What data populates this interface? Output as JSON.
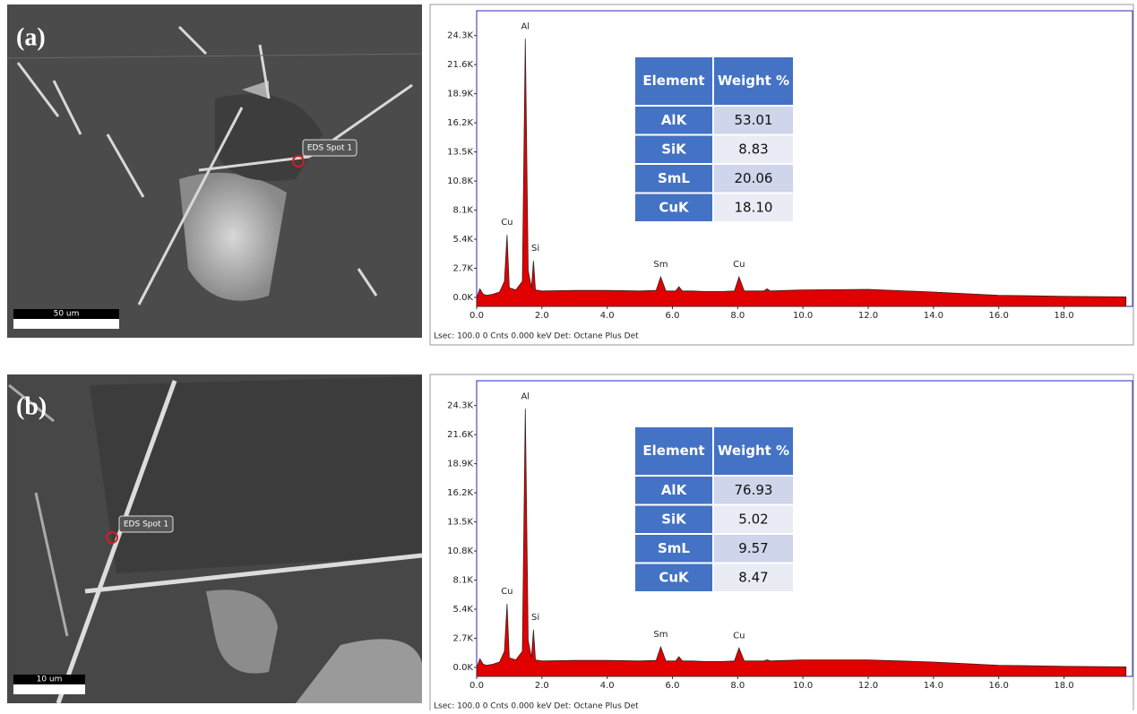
{
  "chart_data": [
    {
      "type": "area",
      "color": "#e00000",
      "outline": "#3a2020",
      "x": [
        0.0,
        0.1,
        0.2,
        0.3,
        0.5,
        0.7,
        0.85,
        0.93,
        1.0,
        1.2,
        1.4,
        1.49,
        1.58,
        1.68,
        1.74,
        1.8,
        2.0,
        3.0,
        4.0,
        5.0,
        5.5,
        5.64,
        5.8,
        6.1,
        6.2,
        6.3,
        6.6,
        7.0,
        7.5,
        7.9,
        8.04,
        8.2,
        8.8,
        8.9,
        9.0,
        10.0,
        12.0,
        14.0,
        16.0,
        18.0,
        19.9
      ],
      "values": [
        0,
        800,
        300,
        200,
        300,
        500,
        1500,
        5800,
        900,
        700,
        1500,
        24000,
        2500,
        900,
        3400,
        700,
        600,
        650,
        650,
        600,
        650,
        1900,
        600,
        600,
        1000,
        600,
        600,
        550,
        550,
        600,
        1900,
        600,
        600,
        800,
        600,
        700,
        750,
        500,
        200,
        100,
        50
      ],
      "xlim": [
        0,
        20.1
      ],
      "ylim": [
        0,
        26600
      ],
      "xticks": [
        {
          "value": 0,
          "label": "0.0"
        },
        {
          "value": 2,
          "label": "2.0"
        },
        {
          "value": 4,
          "label": "4.0"
        },
        {
          "value": 6,
          "label": "6.0"
        },
        {
          "value": 8,
          "label": "8.0"
        },
        {
          "value": 10,
          "label": "10.0"
        },
        {
          "value": 12,
          "label": "12.0"
        },
        {
          "value": 14,
          "label": "14.0"
        },
        {
          "value": 16,
          "label": "16.0"
        },
        {
          "value": 18,
          "label": "18.0"
        }
      ],
      "yticks": [
        {
          "value": 0,
          "label": "0.0K"
        },
        {
          "value": 2700,
          "label": "2.7K"
        },
        {
          "value": 5400,
          "label": "5.4K"
        },
        {
          "value": 8100,
          "label": "8.1K"
        },
        {
          "value": 10800,
          "label": "10.8K"
        },
        {
          "value": 13500,
          "label": "13.5K"
        },
        {
          "value": 16200,
          "label": "16.2K"
        },
        {
          "value": 18900,
          "label": "18.9K"
        },
        {
          "value": 21600,
          "label": "21.6K"
        },
        {
          "value": 24300,
          "label": "24.3K"
        }
      ],
      "annotations": [
        {
          "text": "Cu",
          "x": 0.93,
          "y": 5800
        },
        {
          "text": "Al",
          "x": 1.49,
          "y": 24000
        },
        {
          "text": "Si",
          "x": 1.8,
          "y": 3400
        },
        {
          "text": "Sm",
          "x": 5.64,
          "y": 1900
        },
        {
          "text": "Cu",
          "x": 8.04,
          "y": 1900
        }
      ],
      "footer": "Lsec: 100.0 0 Cnts  0.000 keV Det: Octane Plus Det"
    },
    {
      "type": "area",
      "color": "#e00000",
      "outline": "#3a2020",
      "x": [
        0.0,
        0.1,
        0.2,
        0.3,
        0.5,
        0.7,
        0.85,
        0.93,
        1.0,
        1.2,
        1.4,
        1.49,
        1.58,
        1.68,
        1.74,
        1.8,
        2.0,
        3.0,
        4.0,
        5.0,
        5.5,
        5.64,
        5.8,
        6.1,
        6.2,
        6.3,
        6.6,
        7.0,
        7.5,
        7.9,
        8.04,
        8.2,
        8.8,
        8.9,
        9.0,
        10.0,
        12.0,
        14.0,
        16.0,
        18.0,
        19.9
      ],
      "values": [
        0,
        800,
        300,
        200,
        300,
        500,
        1500,
        5900,
        900,
        700,
        1500,
        24000,
        2500,
        900,
        3500,
        700,
        600,
        650,
        650,
        600,
        650,
        1900,
        600,
        600,
        1000,
        600,
        600,
        550,
        550,
        600,
        1800,
        600,
        600,
        700,
        600,
        700,
        700,
        500,
        200,
        100,
        50
      ],
      "xlim": [
        0,
        20.1
      ],
      "ylim": [
        0,
        26600
      ],
      "xticks": [
        {
          "value": 0,
          "label": "0.0"
        },
        {
          "value": 2,
          "label": "2.0"
        },
        {
          "value": 4,
          "label": "4.0"
        },
        {
          "value": 6,
          "label": "6.0"
        },
        {
          "value": 8,
          "label": "8.0"
        },
        {
          "value": 10,
          "label": "10.0"
        },
        {
          "value": 12,
          "label": "12.0"
        },
        {
          "value": 14,
          "label": "14.0"
        },
        {
          "value": 16,
          "label": "16.0"
        },
        {
          "value": 18,
          "label": "18.0"
        }
      ],
      "yticks": [
        {
          "value": 0,
          "label": "0.0K"
        },
        {
          "value": 2700,
          "label": "2.7K"
        },
        {
          "value": 5400,
          "label": "5.4K"
        },
        {
          "value": 8100,
          "label": "8.1K"
        },
        {
          "value": 10800,
          "label": "10.8K"
        },
        {
          "value": 13500,
          "label": "13.5K"
        },
        {
          "value": 16200,
          "label": "16.2K"
        },
        {
          "value": 18900,
          "label": "18.9K"
        },
        {
          "value": 21600,
          "label": "21.6K"
        },
        {
          "value": 24300,
          "label": "24.3K"
        }
      ],
      "annotations": [
        {
          "text": "Cu",
          "x": 0.93,
          "y": 5900
        },
        {
          "text": "Al",
          "x": 1.49,
          "y": 24000
        },
        {
          "text": "Si",
          "x": 1.8,
          "y": 3500
        },
        {
          "text": "Sm",
          "x": 5.64,
          "y": 1900
        },
        {
          "text": "Cu",
          "x": 8.04,
          "y": 1800
        }
      ],
      "footer": "Lsec: 100.0 0 Cnts  0.000 keV Det: Octane Plus Det"
    }
  ],
  "panels": [
    {
      "label": "(a)",
      "spot": "EDS Spot 1",
      "scale_bar": "50 um",
      "table": {
        "header": [
          "Element",
          "Weight %"
        ],
        "rows": [
          [
            "AlK",
            "53.01"
          ],
          [
            "SiK",
            "8.83"
          ],
          [
            "SmL",
            "20.06"
          ],
          [
            "CuK",
            "18.10"
          ]
        ]
      }
    },
    {
      "label": "(b)",
      "spot": "EDS Spot 1",
      "scale_bar": "10 um",
      "table": {
        "header": [
          "Element",
          "Weight %"
        ],
        "rows": [
          [
            "AlK",
            "76.93"
          ],
          [
            "SiK",
            "5.02"
          ],
          [
            "SmL",
            "9.57"
          ],
          [
            "CuK",
            "8.47"
          ]
        ]
      }
    }
  ]
}
